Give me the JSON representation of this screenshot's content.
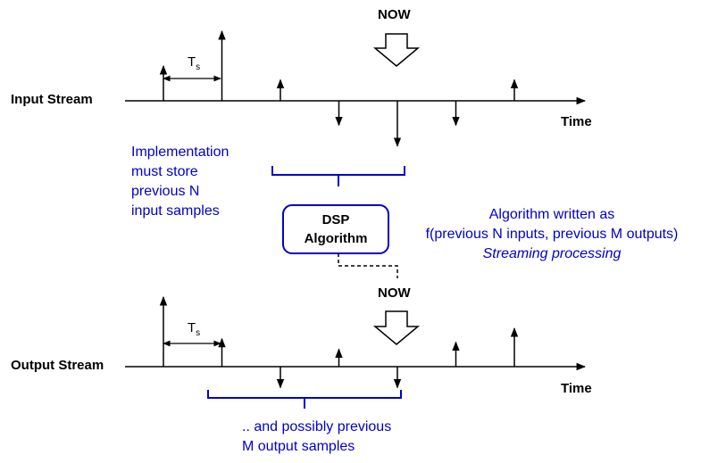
{
  "input": {
    "label": "Input Stream",
    "now_label": "NOW",
    "time_label": "Time",
    "ts_main": "T",
    "ts_sub": "s",
    "samples": [
      0.5,
      1.0,
      0.3,
      -0.35,
      -0.65,
      -0.35,
      0.3
    ],
    "note_lines": [
      "Implementation",
      "must store",
      "previous N",
      "input samples"
    ]
  },
  "dsp": {
    "line1": "DSP",
    "line2": "Algorithm"
  },
  "algorithm_note": {
    "line1": "Algorithm written as",
    "line2": "f(previous N inputs, previous M outputs)",
    "line3": "Streaming processing"
  },
  "output": {
    "label": "Output Stream",
    "now_label": "NOW",
    "time_label": "Time",
    "ts_main": "T",
    "ts_sub": "s",
    "samples": [
      1.0,
      0.4,
      -0.3,
      0.25,
      -0.3,
      0.35,
      0.55
    ],
    "note_lines": [
      ".. and possibly previous",
      "M output samples"
    ]
  },
  "colors": {
    "accent": "#0000cc",
    "ink": "#000000"
  }
}
